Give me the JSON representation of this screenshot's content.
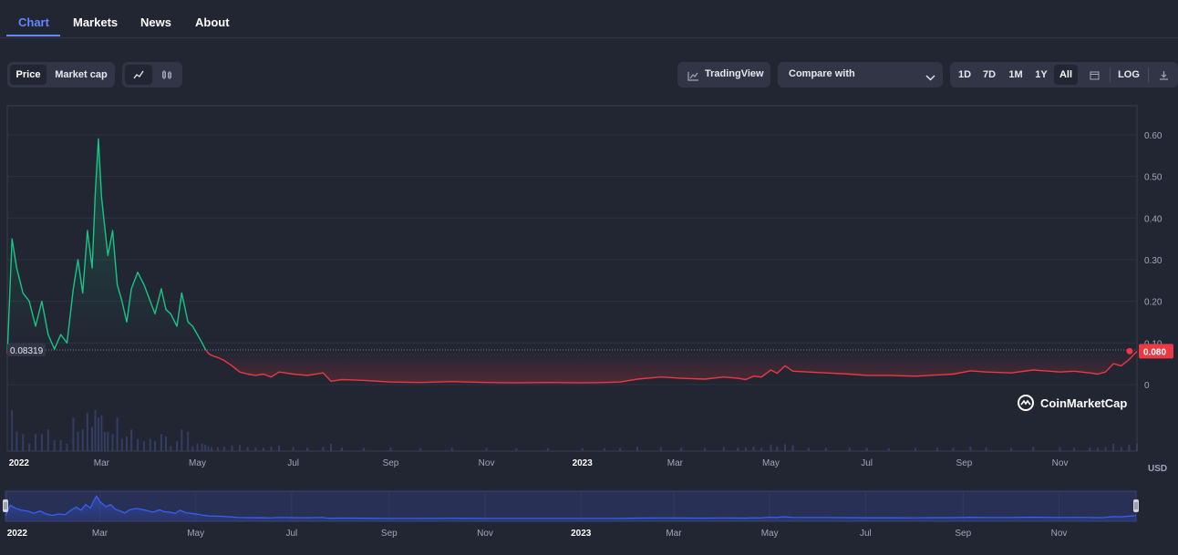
{
  "nav": {
    "tabs": [
      {
        "label": "Chart",
        "active": true
      },
      {
        "label": "Markets",
        "active": false
      },
      {
        "label": "News",
        "active": false
      },
      {
        "label": "About",
        "active": false
      }
    ]
  },
  "toolbar": {
    "metric_tabs": [
      "Price",
      "Market cap"
    ],
    "metric_selected": "Price",
    "chart_style_icons": [
      "line-chart-icon",
      "candlestick-icon"
    ],
    "chart_style_selected": "line-chart-icon",
    "tradingview_label": "TradingView",
    "compare_label": "Compare with",
    "ranges": [
      "1D",
      "7D",
      "1M",
      "1Y",
      "All"
    ],
    "range_selected": "All",
    "log_label": "LOG",
    "icons": {
      "calendar": "calendar-icon",
      "download": "download-icon",
      "tradingview": "tradingview-icon",
      "chevron": "chevron-down-icon"
    }
  },
  "colors": {
    "up": "#16c784",
    "down": "#ea3943",
    "accent": "#6188ff",
    "background": "#222532",
    "navigator_line": "#3861fb"
  },
  "chart_data": {
    "type": "line",
    "currency": "USD",
    "watermark": "CoinMarketCap",
    "ylim": [
      -0.16,
      0.67
    ],
    "y_ticks": [
      0,
      0.1,
      0.2,
      0.3,
      0.4,
      0.5,
      0.6
    ],
    "y_tick_labels": [
      "0",
      "0.10",
      "0.20",
      "0.30",
      "0.40",
      "0.50",
      "0.60"
    ],
    "x_tick_labels": [
      "2022",
      "Mar",
      "May",
      "Jul",
      "Sep",
      "Nov",
      "2023",
      "Mar",
      "May",
      "Jul",
      "Sep",
      "Nov"
    ],
    "x_tick_dates": [
      "2022-01-01",
      "2022-03-01",
      "2022-05-01",
      "2022-07-01",
      "2022-09-01",
      "2022-11-01",
      "2023-01-01",
      "2023-03-01",
      "2023-05-01",
      "2023-07-01",
      "2023-09-01",
      "2023-11-01"
    ],
    "xlim": [
      "2021-12-31",
      "2023-12-20"
    ],
    "baseline_value": 0.08319,
    "baseline_label": "0.08319",
    "current_value": 0.08,
    "current_label": "0.080",
    "series": [
      {
        "x": [
          "2021-12-31",
          "2022-01-03",
          "2022-01-06",
          "2022-01-10",
          "2022-01-14",
          "2022-01-18",
          "2022-01-22",
          "2022-01-26",
          "2022-01-30",
          "2022-02-03",
          "2022-02-07",
          "2022-02-11",
          "2022-02-14",
          "2022-02-17",
          "2022-02-20",
          "2022-02-23",
          "2022-02-25",
          "2022-02-27",
          "2022-03-01",
          "2022-03-03",
          "2022-03-05",
          "2022-03-08",
          "2022-03-11",
          "2022-03-14",
          "2022-03-17",
          "2022-03-20",
          "2022-03-24",
          "2022-03-28",
          "2022-04-01",
          "2022-04-04",
          "2022-04-08",
          "2022-04-11",
          "2022-04-14",
          "2022-04-18",
          "2022-04-21",
          "2022-04-25",
          "2022-04-28",
          "2022-05-01",
          "2022-05-04",
          "2022-05-06",
          "2022-05-08",
          "2022-05-10",
          "2022-05-14",
          "2022-05-18",
          "2022-05-23",
          "2022-05-28",
          "2022-06-02",
          "2022-06-07",
          "2022-06-12",
          "2022-06-17",
          "2022-06-22",
          "2022-07-01",
          "2022-07-10",
          "2022-07-20",
          "2022-07-25",
          "2022-08-01",
          "2022-08-15",
          "2022-09-01",
          "2022-09-20",
          "2022-10-10",
          "2022-11-01",
          "2022-11-20",
          "2022-12-10",
          "2023-01-01",
          "2023-01-15",
          "2023-01-25",
          "2023-02-05",
          "2023-02-20",
          "2023-03-05",
          "2023-03-20",
          "2023-04-01",
          "2023-04-10",
          "2023-04-15",
          "2023-04-20",
          "2023-04-25",
          "2023-05-01",
          "2023-05-05",
          "2023-05-10",
          "2023-05-15",
          "2023-05-25",
          "2023-06-05",
          "2023-06-20",
          "2023-07-01",
          "2023-07-15",
          "2023-08-01",
          "2023-08-15",
          "2023-08-25",
          "2023-09-05",
          "2023-09-15",
          "2023-10-01",
          "2023-10-15",
          "2023-11-01",
          "2023-11-10",
          "2023-11-20",
          "2023-11-25",
          "2023-11-30",
          "2023-12-05",
          "2023-12-10",
          "2023-12-15",
          "2023-12-20"
        ],
        "y": [
          0.075,
          0.35,
          0.28,
          0.22,
          0.2,
          0.14,
          0.2,
          0.12,
          0.085,
          0.12,
          0.1,
          0.23,
          0.3,
          0.22,
          0.37,
          0.28,
          0.46,
          0.59,
          0.45,
          0.38,
          0.31,
          0.37,
          0.24,
          0.2,
          0.15,
          0.23,
          0.27,
          0.24,
          0.2,
          0.17,
          0.23,
          0.18,
          0.17,
          0.14,
          0.22,
          0.15,
          0.14,
          0.12,
          0.1,
          0.085,
          0.075,
          0.07,
          0.065,
          0.058,
          0.045,
          0.03,
          0.025,
          0.022,
          0.025,
          0.018,
          0.03,
          0.025,
          0.022,
          0.028,
          0.008,
          0.012,
          0.01,
          0.006,
          0.005,
          0.007,
          0.005,
          0.004,
          0.005,
          0.004,
          0.005,
          0.006,
          0.013,
          0.018,
          0.015,
          0.013,
          0.018,
          0.015,
          0.012,
          0.02,
          0.018,
          0.035,
          0.027,
          0.045,
          0.032,
          0.03,
          0.028,
          0.025,
          0.022,
          0.022,
          0.02,
          0.023,
          0.025,
          0.033,
          0.03,
          0.028,
          0.035,
          0.03,
          0.032,
          0.028,
          0.025,
          0.03,
          0.05,
          0.045,
          0.06,
          0.08
        ]
      }
    ],
    "volume_note": "volume bars shown beneath price line"
  },
  "axis": {
    "currency": "USD"
  }
}
